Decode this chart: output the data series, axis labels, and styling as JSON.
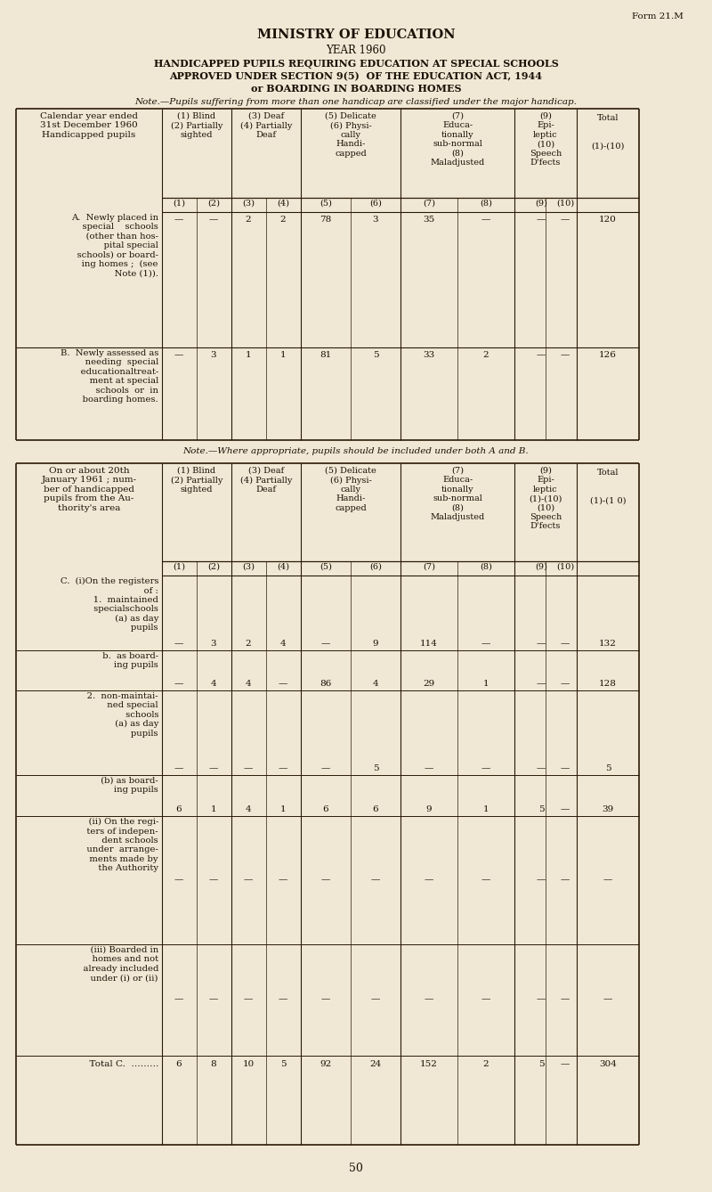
{
  "bg_color": "#f0e8d5",
  "form_label": "Form 21.M",
  "title1": "MINISTRY OF EDUCATION",
  "title2": "YEAR 1960",
  "title3": "HANDICAPPED PUPILS REQUIRING EDUCATION AT SPECIAL SCHOOLS",
  "title4": "APPROVED UNDER SECTION 9(5)  OF THE EDUCATION ACT, 1944",
  "title5": "or BOARDING IN BOARDING HOMES",
  "note1": "Note.—Pupils suffering from more than one handicap are classified under the major handicap.",
  "col_header_row_label": "Calendar year ended\n31st December 1960\nHandicapped pupils",
  "col_h1": "(1) Blind\n(2) Partially\nsighted",
  "col_h2": "(3) Deaf\n(4) Partially\nDeaf",
  "col_h3": "(5) Delicate\n(6) Physi-\ncally\nHandi-\ncapped",
  "col_h4": "(7)\nEduca-\ntionally\nsub-normal\n(8)\nMaladjusted",
  "col_h5": "(9)\nEpi-\nleptic\n(10)\nSpeech\nD'fects",
  "col_h6": "Total\n\n\n(1)-(10)",
  "sub_col_headers": [
    "(1)",
    "(2)",
    "(3)",
    "(4)",
    "(5)",
    "(6)",
    "(7)",
    "(8)",
    "(9)",
    "(10)"
  ],
  "row_A_label": "A.  Newly placed in\n     special    schools\n     (other than hos-\n     pital special\n     schools) or board-\n     ing homes ;  (see\n     Note (1)).",
  "row_A_values": [
    "—",
    "—",
    "2",
    "2",
    "78",
    "3",
    "35",
    "—",
    "—",
    "—",
    "120"
  ],
  "row_B_label": "B.  Newly assessed as\n     needing  special\n     educationaltreat-\n     ment at special\n     schools  or  in\n     boarding homes.",
  "row_B_values": [
    "—",
    "3",
    "1",
    "1",
    "81",
    "5",
    "33",
    "2",
    "—",
    "—",
    "126"
  ],
  "note_AB": "Note.—Where appropriate, pupils should be included under both A and B.",
  "col2_row_label": "On or about 20th\nJanuary 1961 ; num-\nber of handicapped\npupils from the Au-\nthority's area",
  "col2_h1": "(1) Blind\n(2) Partially\nsighted",
  "col2_h2": "(3) Deaf\n(4) Partially\nDeaf",
  "col2_h3": "(5) Delicate\n(6) Physi-\ncally\nHandi-\ncapped",
  "col2_h4": "(7)\nEduca-\ntionally\nsub-normal\n(8)\nMaladjusted",
  "col2_h5": "(9)\nEpi-\nleptic\n(1)-(10)\n(10)\nSpeech\nD'fects",
  "col2_h6": "Total\n\n\n(1)-(1 0)",
  "row_C_label": "C.  (i)On the registers\n     of :\n     1.  maintained\n          specialschools\n          (a) as day\n               pupils",
  "row_C1a_values": [
    "—",
    "3",
    "2",
    "4",
    "—",
    "9",
    "114",
    "—",
    "—",
    "—",
    "132"
  ],
  "row_C1b_label": "          b.  as board-\n               ing pupils",
  "row_C1b_values": [
    "—",
    "4",
    "4",
    "—",
    "86",
    "4",
    "29",
    "1",
    "—",
    "—",
    "128"
  ],
  "row_C2a_label": "     2.  non-maintai-\n          ned special\n          schools\n          (a) as day\n               pupils",
  "row_C2a_values": [
    "—",
    "—",
    "—",
    "—",
    "—",
    "5",
    "—",
    "—",
    "—",
    "—",
    "5"
  ],
  "row_C2b_label": "          (b) as board-\n               ing pupils",
  "row_C2b_values": [
    "6",
    "1",
    "4",
    "1",
    "6",
    "6",
    "9",
    "1",
    "5",
    "—",
    "39"
  ],
  "row_Cii_label": "     (ii) On the regi-\n           ters of indepen-\n           dent schools\n           under  arrange-\n           ments made by\n           the Authority",
  "row_Cii_values": [
    "—",
    "—",
    "—",
    "—",
    "—",
    "—",
    "—",
    "—",
    "—",
    "—",
    "—"
  ],
  "row_Ciii_label": "     (iii) Boarded in\n            homes and not\n            already included\n            under (i) or (ii)",
  "row_Ciii_values": [
    "—",
    "—",
    "—",
    "—",
    "—",
    "—",
    "—",
    "—",
    "—",
    "—",
    "—"
  ],
  "row_totC_label": "          Total C.  ………",
  "row_totC_values": [
    "6",
    "8",
    "10",
    "5",
    "92",
    "24",
    "152",
    "2",
    "5",
    "—",
    "304"
  ],
  "page_number": "50"
}
